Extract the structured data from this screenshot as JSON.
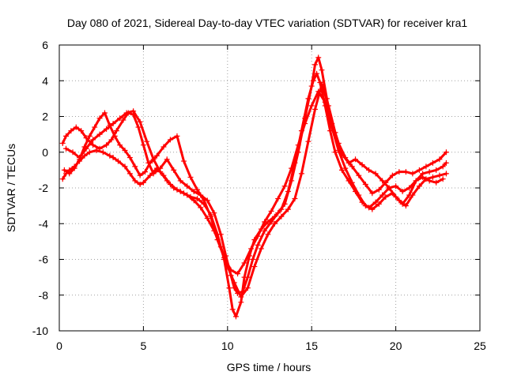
{
  "chart_data": {
    "type": "scatter",
    "title": "Day 080 of 2021, Sidereal Day-to-day VTEC variation (SDTVAR) for receiver kra1",
    "xlabel": "GPS time / hours",
    "ylabel": "SDTVAR / TECUs",
    "xlim": [
      0,
      25
    ],
    "ylim": [
      -10,
      6
    ],
    "xticks": [
      0,
      5,
      10,
      15,
      20,
      25
    ],
    "yticks": [
      -10,
      -8,
      -6,
      -4,
      -2,
      0,
      2,
      4,
      6
    ],
    "xtick_labels": [
      "0",
      "5",
      "10",
      "15",
      "20",
      "25"
    ],
    "ytick_labels": [
      "-10",
      "-8",
      "-6",
      "-4",
      "-2",
      "0",
      "2",
      "4",
      "6"
    ],
    "grid": true,
    "marker": "plus",
    "color": "#ff0000",
    "series": [
      {
        "x": [
          0.2,
          0.4,
          0.6,
          0.9,
          1.2,
          1.5,
          1.8,
          2.2,
          2.6,
          3.0,
          3.2,
          3.5,
          3.9,
          4.2,
          4.5,
          4.8,
          5.0,
          5.4,
          5.8,
          6.2,
          6.6,
          7.0,
          7.4,
          7.8,
          8.2,
          8.6,
          9.0,
          9.4,
          9.8,
          10.1,
          10.3,
          10.5,
          10.8,
          11.0,
          11.3,
          11.6,
          12.0,
          12.4,
          12.8,
          13.2,
          13.6,
          14.0,
          14.4,
          14.8,
          15.1,
          15.3,
          15.5,
          15.8,
          16.1,
          16.4,
          16.8,
          17.2,
          17.6,
          18.0,
          18.4,
          18.8,
          19.2,
          19.6,
          20.0,
          20.4,
          20.8,
          21.2,
          21.6,
          22.0,
          22.4,
          22.8,
          23.0
        ],
        "y": [
          -1.5,
          -1.2,
          -1.0,
          -0.8,
          -0.5,
          -0.2,
          0.0,
          0.1,
          0.0,
          -0.2,
          -0.3,
          -0.5,
          -0.8,
          -1.2,
          -1.6,
          -1.8,
          -1.7,
          -1.3,
          -0.9,
          -1.3,
          -1.8,
          -2.1,
          -2.3,
          -2.5,
          -2.6,
          -2.9,
          -3.5,
          -4.6,
          -6.0,
          -7.6,
          -8.8,
          -9.2,
          -8.4,
          -7.0,
          -5.8,
          -4.9,
          -4.3,
          -3.9,
          -3.6,
          -3.2,
          -2.2,
          -0.6,
          1.2,
          3.0,
          4.0,
          4.4,
          3.9,
          2.6,
          1.2,
          0.0,
          -1.0,
          -1.6,
          -2.2,
          -2.8,
          -3.1,
          -2.8,
          -2.4,
          -2.0,
          -1.9,
          -2.2,
          -2.0,
          -1.6,
          -1.2,
          -1.1,
          -1.0,
          -0.8,
          -0.6
        ]
      },
      {
        "x": [
          0.2,
          0.4,
          0.7,
          1.0,
          1.3,
          1.6,
          2.0,
          2.4,
          2.8,
          3.1,
          3.4,
          3.8,
          4.1,
          4.4,
          4.7,
          5.0,
          5.3,
          5.6,
          6.0,
          6.4,
          6.8,
          7.2,
          7.6,
          8.0,
          8.4,
          8.8,
          9.2,
          9.6,
          9.9,
          10.2,
          10.4,
          10.6,
          10.9,
          11.2,
          11.5,
          11.8,
          12.2,
          12.6,
          13.0,
          13.4,
          13.8,
          14.2,
          14.6,
          15.0,
          15.2,
          15.4,
          15.6,
          15.9,
          16.2,
          16.6,
          17.0,
          17.4,
          17.8,
          18.2,
          18.6,
          19.0,
          19.4,
          19.8,
          20.2,
          20.6,
          21.0,
          21.4,
          21.8,
          22.2,
          22.6,
          23.0
        ],
        "y": [
          0.5,
          0.9,
          1.2,
          1.4,
          1.2,
          0.8,
          0.4,
          0.2,
          0.4,
          0.7,
          1.2,
          1.8,
          2.2,
          2.1,
          1.4,
          0.4,
          -0.6,
          -1.2,
          -0.9,
          -0.4,
          -1.0,
          -1.6,
          -1.9,
          -2.2,
          -2.4,
          -2.7,
          -3.4,
          -4.6,
          -5.8,
          -6.9,
          -7.6,
          -7.9,
          -7.8,
          -7.0,
          -6.0,
          -5.2,
          -4.4,
          -3.9,
          -3.4,
          -2.9,
          -1.6,
          0.0,
          1.9,
          3.7,
          4.9,
          5.3,
          4.6,
          3.0,
          1.6,
          0.5,
          -0.3,
          -0.8,
          -1.3,
          -1.8,
          -2.3,
          -2.1,
          -1.7,
          -1.3,
          -1.1,
          -1.1,
          -1.2,
          -1.0,
          -0.8,
          -0.6,
          -0.4,
          0.0
        ]
      },
      {
        "x": [
          0.3,
          0.6,
          0.9,
          1.2,
          1.5,
          1.8,
          2.1,
          2.4,
          2.7,
          3.0,
          3.3,
          3.6,
          3.9,
          4.2,
          4.5,
          4.8,
          5.1,
          5.4,
          5.8,
          6.2,
          6.6,
          7.0,
          7.4,
          7.8,
          8.2,
          8.6,
          9.0,
          9.4,
          9.8,
          10.2,
          10.6,
          11.0,
          11.4,
          11.8,
          12.2,
          12.6,
          13.0,
          13.4,
          13.8,
          14.2,
          14.6,
          15.0,
          15.4,
          15.8,
          16.2,
          16.6,
          17.0,
          17.4,
          17.8,
          18.2,
          18.6,
          19.0,
          19.4,
          19.8,
          20.2,
          20.6,
          21.0,
          21.4,
          21.8,
          22.2,
          22.6,
          23.0
        ],
        "y": [
          -1.0,
          -1.2,
          -0.9,
          -0.4,
          0.3,
          0.9,
          1.4,
          1.9,
          2.2,
          1.5,
          0.9,
          0.4,
          0.1,
          -0.3,
          -0.8,
          -1.3,
          -1.1,
          -0.6,
          -0.2,
          0.3,
          0.7,
          0.9,
          -0.5,
          -1.4,
          -2.1,
          -2.7,
          -3.6,
          -4.9,
          -5.9,
          -6.6,
          -6.8,
          -6.2,
          -5.4,
          -4.7,
          -3.9,
          -3.3,
          -2.6,
          -1.9,
          -0.9,
          0.4,
          1.6,
          2.6,
          3.4,
          2.8,
          1.4,
          0.1,
          -0.9,
          -1.7,
          -2.4,
          -3.0,
          -3.2,
          -2.9,
          -2.5,
          -2.3,
          -2.7,
          -3.0,
          -2.4,
          -1.9,
          -1.5,
          -1.4,
          -1.3,
          -1.2
        ]
      },
      {
        "x": [
          0.4,
          0.8,
          1.2,
          1.6,
          2.0,
          2.4,
          2.8,
          3.2,
          3.6,
          4.0,
          4.4,
          4.8,
          5.2,
          5.6,
          6.0,
          6.4,
          6.8,
          7.2,
          7.6,
          8.0,
          8.4,
          8.8,
          9.2,
          9.6,
          10.0,
          10.4,
          10.8,
          11.2,
          11.6,
          12.0,
          12.4,
          12.8,
          13.2,
          13.6,
          14.0,
          14.4,
          14.8,
          15.2,
          15.6,
          16.0,
          16.4,
          16.8,
          17.2,
          17.6,
          18.0,
          18.4,
          18.8,
          19.2,
          19.6,
          20.0,
          20.4,
          20.8,
          21.2,
          21.6,
          22.0,
          22.4,
          22.8
        ],
        "y": [
          0.2,
          0.0,
          -0.3,
          0.2,
          0.7,
          1.0,
          1.3,
          1.6,
          1.9,
          2.2,
          2.3,
          1.7,
          0.6,
          -0.4,
          -1.1,
          -1.6,
          -2.0,
          -2.2,
          -2.4,
          -2.7,
          -3.1,
          -3.7,
          -4.4,
          -5.3,
          -6.4,
          -7.3,
          -8.1,
          -7.6,
          -6.4,
          -5.4,
          -4.6,
          -4.0,
          -3.6,
          -3.2,
          -2.6,
          -1.2,
          0.6,
          2.4,
          3.8,
          2.6,
          1.1,
          -0.1,
          -0.6,
          -0.4,
          -0.7,
          -1.0,
          -1.2,
          -1.6,
          -2.0,
          -2.5,
          -2.9,
          -2.4,
          -1.6,
          -1.4,
          -1.6,
          -1.7,
          -1.5
        ]
      }
    ]
  }
}
